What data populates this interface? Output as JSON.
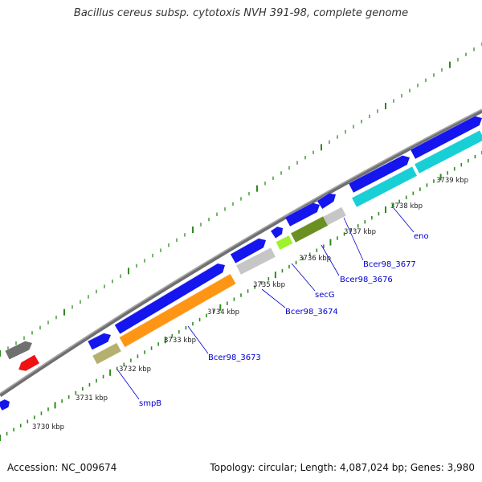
{
  "title": "Bacillus cereus subsp. cytotoxis NVH 391-98, complete genome",
  "footer": {
    "accession": "Accession: NC_009674",
    "summary": "Topology: circular; Length: 4,087,024 bp; Genes: 3,980"
  },
  "colors": {
    "backbone": "#8a8a8a",
    "tick": "#2e8b1e",
    "gene_label": "#0000cc",
    "scale_label": "#222222",
    "blue": "#1515ee",
    "orange": "#ff9514",
    "cyan": "#19cfd6",
    "olive": "#b6b070",
    "darkgreen": "#6a8f22",
    "lightgreen": "#9ef22a",
    "gray": "#c6c6c6",
    "darkgray": "#707070",
    "red": "#ee1212"
  },
  "scale_labels": [
    "3730 kbp",
    "3731 kbp",
    "3732 kbp",
    "3733 kbp",
    "3734 kbp",
    "3735 kbp",
    "3736 kbp",
    "3737 kbp",
    "3738 kbp",
    "3739 kbp"
  ],
  "gene_labels": [
    "smpB",
    "Bcer98_3673",
    "Bcer98_3674",
    "secG",
    "Bcer98_3676",
    "Bcer98_3677",
    "eno"
  ]
}
